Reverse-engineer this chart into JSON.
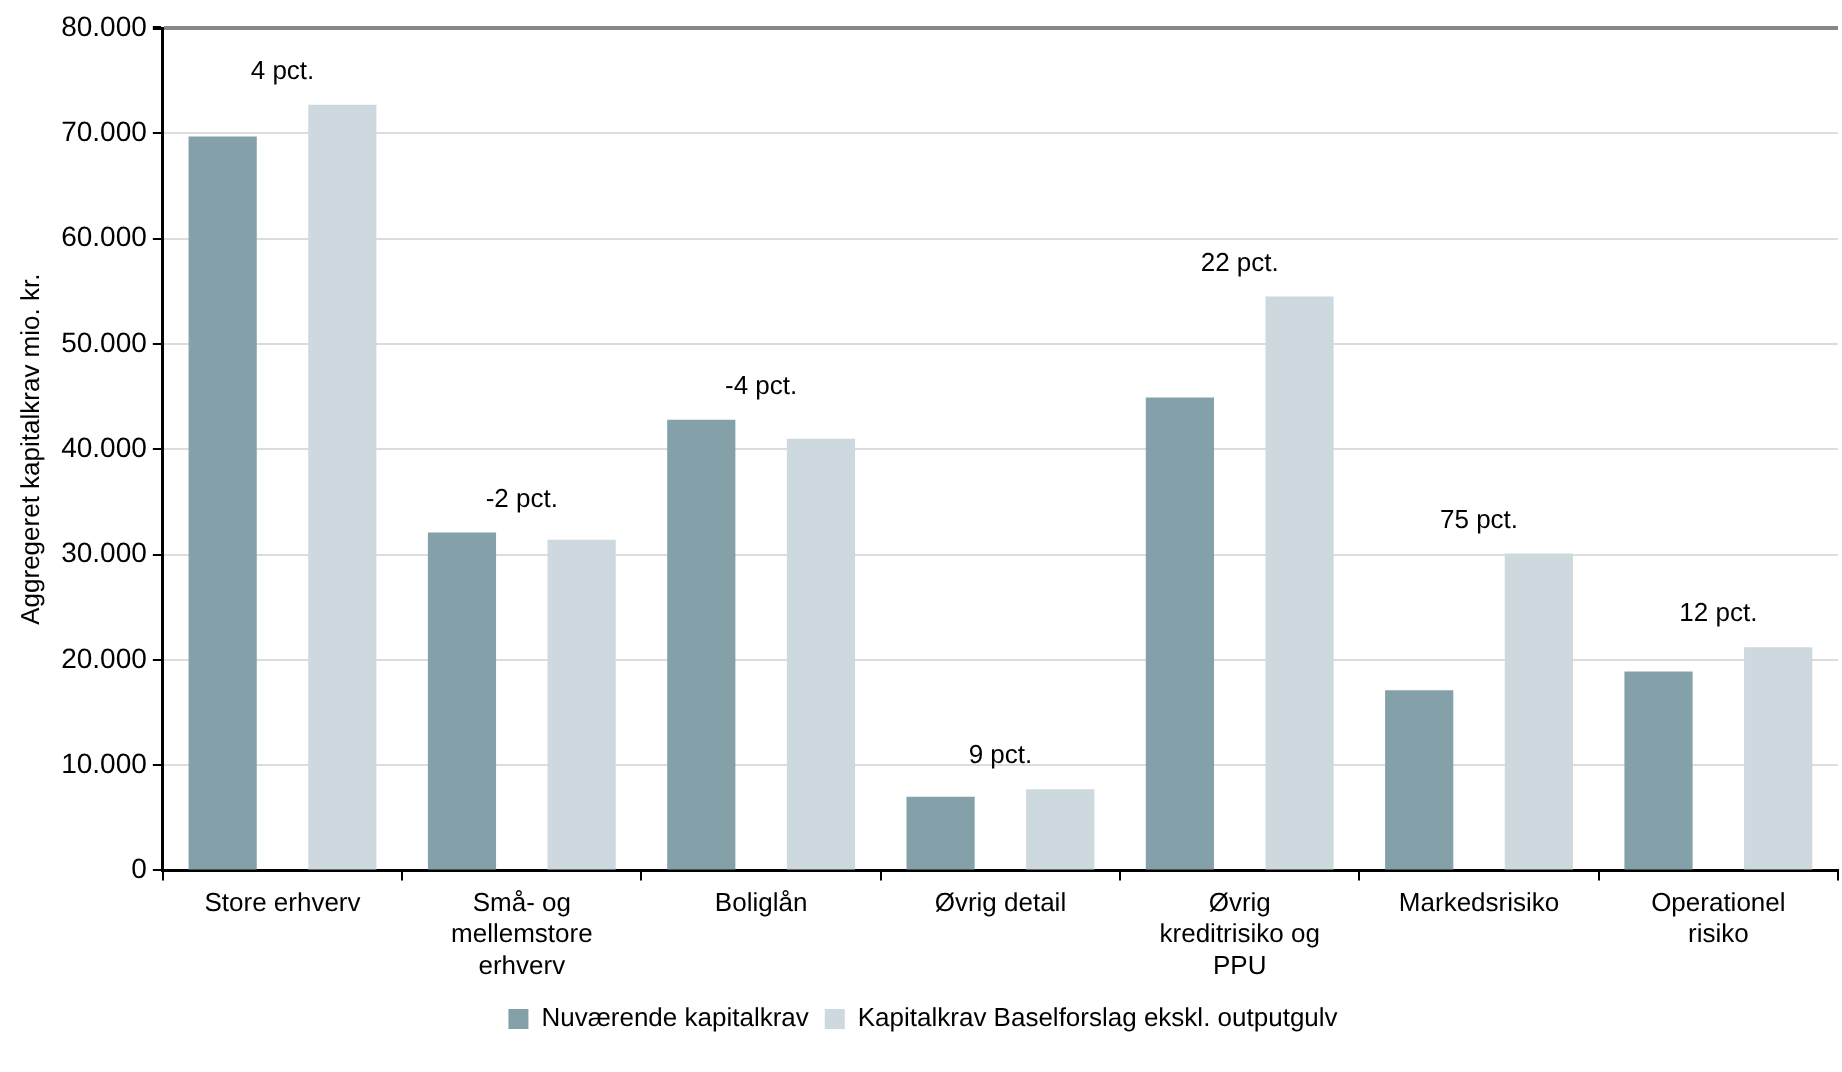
{
  "chart_data": {
    "type": "bar",
    "ylabel": "Aggregeret kapitalkrav mio. kr.",
    "categories": [
      "Store erhverv",
      "Små- og mellemstore erhverv",
      "Boliglån",
      "Øvrig detail",
      "Øvrig kreditrisiko og PPU",
      "Markedsrisiko",
      "Operationel risiko"
    ],
    "series": [
      {
        "name": "Nuværende kapitalkrav",
        "color": "#84a1aa",
        "values": [
          69700,
          32100,
          42800,
          7000,
          44900,
          17100,
          18900
        ]
      },
      {
        "name": "Kapitalkrav Baselforslag ekskl. outputgulv",
        "color": "#cdd9de",
        "values": [
          72700,
          31400,
          41000,
          7700,
          54500,
          30100,
          21200
        ]
      }
    ],
    "ylim": [
      0,
      80000
    ],
    "yticks": [
      0,
      {
        "value": 10000,
        "label": "10.000"
      },
      {
        "value": 20000,
        "label": "20.000"
      },
      {
        "value": 30000,
        "label": "30.000"
      },
      {
        "value": 40000,
        "label": "40.000"
      },
      {
        "value": 50000,
        "label": "50.000"
      },
      {
        "value": 60000,
        "label": "60.000"
      },
      {
        "value": 70000,
        "label": "70.000"
      },
      {
        "value": 80000,
        "label": "80.000"
      }
    ],
    "grid": "y",
    "legend": "bottom",
    "annotations": [
      "4 pct.",
      "-2 pct.",
      "-4 pct.",
      "9 pct.",
      "22 pct.",
      "75 pct.",
      "12 pct."
    ]
  }
}
